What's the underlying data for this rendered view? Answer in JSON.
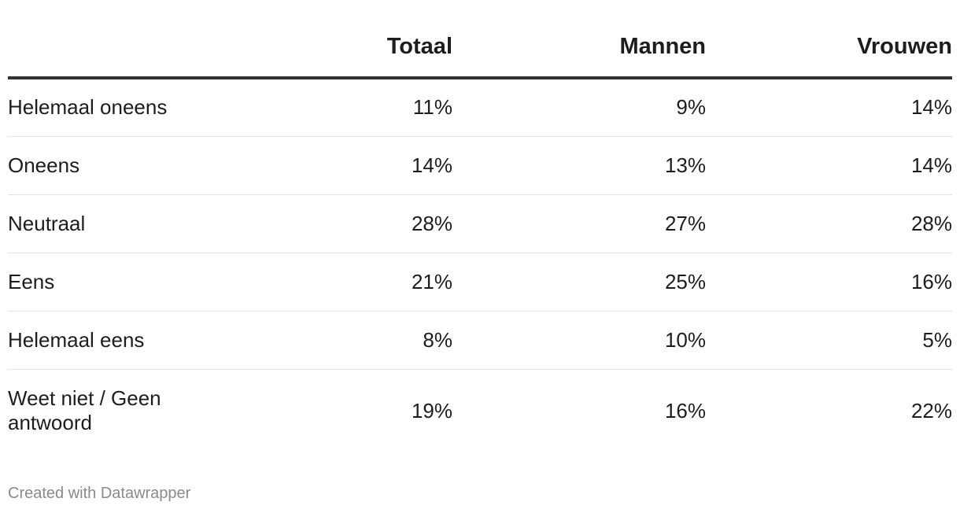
{
  "chart_data": {
    "type": "table",
    "columns": [
      "",
      "Totaal",
      "Mannen",
      "Vrouwen"
    ],
    "rows": [
      {
        "label": "Helemaal oneens",
        "values": [
          "11%",
          "9%",
          "14%"
        ]
      },
      {
        "label": "Oneens",
        "values": [
          "14%",
          "13%",
          "14%"
        ]
      },
      {
        "label": "Neutraal",
        "values": [
          "28%",
          "27%",
          "28%"
        ]
      },
      {
        "label": "Eens",
        "values": [
          "21%",
          "25%",
          "16%"
        ]
      },
      {
        "label": "Helemaal eens",
        "values": [
          "8%",
          "10%",
          "5%"
        ]
      },
      {
        "label": "Weet niet / Geen antwoord",
        "values": [
          "19%",
          "16%",
          "22%"
        ]
      }
    ]
  },
  "footer": {
    "credit": "Created with Datawrapper"
  },
  "colors": {
    "text": "#1d1d1d",
    "header_rule": "#333333",
    "row_rule": "#e2e2e2",
    "credit": "#8a8a8a"
  }
}
